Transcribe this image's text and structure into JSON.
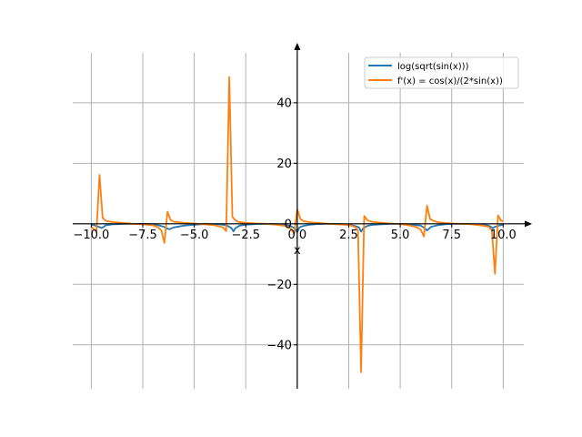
{
  "chart_data": {
    "type": "line",
    "title": "",
    "xlabel": "x",
    "ylabel": "",
    "xlim": [
      -10.9,
      11.0
    ],
    "ylim": [
      -54.5,
      56.5
    ],
    "xticks": [
      -10.0,
      -7.5,
      -5.0,
      -2.5,
      0.0,
      2.5,
      5.0,
      7.5,
      10.0
    ],
    "xtick_labels": [
      "−10.0",
      "−7.5",
      "−5.0",
      "−2.5",
      "0.0",
      "2.5",
      "5.0",
      "7.5",
      "10.0"
    ],
    "yticks": [
      -40,
      -20,
      0,
      20,
      40
    ],
    "ytick_labels": [
      "−40",
      "−20",
      "0",
      "20",
      "40"
    ],
    "grid": true,
    "legend_position": "top-right",
    "colors": {
      "series1": "#1f77b4",
      "series2": "#ff7f0e",
      "grid": "#b0b0b0",
      "axis": "#000000"
    },
    "series": [
      {
        "name": "log(sqrt(sin(x)))",
        "x": [
          -10,
          -9.9,
          -9.6,
          -9.5,
          -9.4,
          -9.3,
          -9.0,
          -8.5,
          -8.0,
          -7.5,
          -7.2,
          -7.0,
          -6.8,
          -6.5,
          -6.3,
          -6.2,
          -6.0,
          -5.5,
          -5.0,
          -4.5,
          -4.0,
          -3.6,
          -3.4,
          -3.2,
          -3.1,
          -3.0,
          -2.8,
          -2.5,
          -2.0,
          -1.5,
          -1.0,
          -0.6,
          -0.3,
          -0.1,
          0.0,
          0.1,
          0.3,
          0.6,
          1.0,
          1.5,
          2.0,
          2.5,
          2.8,
          3.0,
          3.1,
          3.2,
          3.4,
          3.6,
          4.0,
          4.5,
          5.0,
          5.5,
          6.0,
          6.2,
          6.3,
          6.5,
          6.8,
          7.0,
          7.2,
          7.5,
          8.0,
          8.5,
          9.0,
          9.3,
          9.4,
          9.5,
          9.6,
          9.9,
          10.0
        ],
        "y": [
          -0.3,
          -0.4,
          -1.1,
          -1.4,
          -1.0,
          -0.5,
          -0.2,
          -0.05,
          -0.01,
          -0.03,
          -0.1,
          -0.2,
          -0.4,
          -0.9,
          -1.6,
          -1.8,
          -1.2,
          -0.6,
          -0.3,
          -0.1,
          -0.1,
          -0.3,
          -0.6,
          -1.4,
          -2.5,
          -1.4,
          -0.6,
          -0.3,
          -0.1,
          -0.01,
          -0.1,
          -0.3,
          -0.8,
          -1.6,
          -2.8,
          -1.2,
          -0.7,
          -0.3,
          -0.1,
          0.0,
          -0.05,
          -0.3,
          -0.7,
          -1.2,
          -2.6,
          -1.5,
          -0.7,
          -0.4,
          -0.2,
          -0.05,
          -0.02,
          -0.2,
          -0.6,
          -1.5,
          -2.2,
          -1.0,
          -0.5,
          -0.3,
          -0.15,
          -0.05,
          -0.01,
          -0.1,
          -0.3,
          -0.6,
          -1.0,
          -1.5,
          -1.0,
          -0.4,
          -0.3
        ]
      },
      {
        "name": "f'(x) = cos(x)/(2*sin(x))",
        "x": [
          -10,
          -9.9,
          -9.75,
          -9.6,
          -9.45,
          -9.3,
          -9.15,
          -9.0,
          -8.5,
          -8.0,
          -7.5,
          -7.0,
          -6.75,
          -6.6,
          -6.45,
          -6.3,
          -6.15,
          -6.0,
          -5.5,
          -5.0,
          -4.5,
          -4.0,
          -3.6,
          -3.45,
          -3.3,
          -3.15,
          -3.0,
          -2.85,
          -2.5,
          -2.0,
          -1.5,
          -1.0,
          -0.6,
          -0.3,
          -0.15,
          0.0,
          0.15,
          0.3,
          0.6,
          1.0,
          1.5,
          2.0,
          2.5,
          2.8,
          2.95,
          3.1,
          3.25,
          3.4,
          3.6,
          4.0,
          4.5,
          5.0,
          5.5,
          5.8,
          6.0,
          6.15,
          6.3,
          6.45,
          6.6,
          6.8,
          7.0,
          7.5,
          8.0,
          8.5,
          9.0,
          9.3,
          9.45,
          9.6,
          9.75,
          9.9,
          10.0
        ],
        "y": [
          -0.9,
          -1.6,
          -2.6,
          16.2,
          2.0,
          1.0,
          0.8,
          0.6,
          0.3,
          0.0,
          -0.2,
          -0.5,
          -1.2,
          -2.2,
          -6.3,
          4.0,
          1.3,
          0.7,
          0.3,
          0.1,
          -0.2,
          -0.5,
          -1.2,
          -2.4,
          48.5,
          2.3,
          1.2,
          0.6,
          0.3,
          0.1,
          0.0,
          -0.3,
          -0.7,
          -1.6,
          -3.3,
          4.8,
          1.6,
          0.9,
          0.5,
          0.3,
          0.0,
          -0.2,
          -0.4,
          -1.0,
          -2.2,
          -49.0,
          2.6,
          1.2,
          0.7,
          0.4,
          0.1,
          -0.1,
          -0.6,
          -1.1,
          -2.0,
          -4.2,
          6.0,
          1.6,
          1.0,
          0.6,
          0.4,
          0.1,
          0.0,
          -0.2,
          -0.6,
          -1.0,
          -2.2,
          -16.5,
          2.8,
          1.0,
          0.9
        ]
      }
    ]
  }
}
